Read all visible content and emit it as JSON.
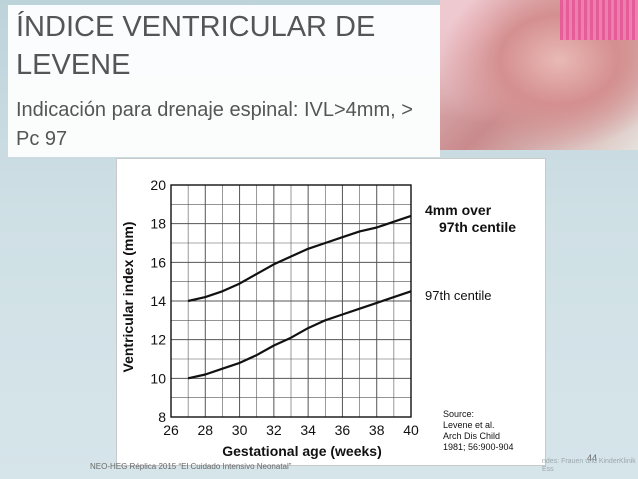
{
  "slide": {
    "title": "ÍNDICE VENTRICULAR DE LEVENE",
    "subtitle": "Indicación para drenaje espinal: IVL>4mm, > Pc 97",
    "footer": "NEO-HEG Réplica 2015 “El Cuidado Intensivo Neonatal”",
    "page_number": "44",
    "watermark": "ndes: Frauen und KinderKlinik Ess"
  },
  "chart_data": {
    "type": "line",
    "title": "",
    "xlabel": "Gestational age (weeks)",
    "ylabel": "Ventricular index (mm)",
    "xlim": [
      26,
      40
    ],
    "ylim": [
      8,
      20
    ],
    "x_ticks": [
      26,
      28,
      30,
      32,
      34,
      36,
      38,
      40
    ],
    "y_ticks": [
      8,
      10,
      12,
      14,
      16,
      18,
      20
    ],
    "grid": true,
    "series": [
      {
        "name": "4mm over 97th centile",
        "x": [
          27,
          28,
          29,
          30,
          31,
          32,
          33,
          34,
          35,
          36,
          37,
          38,
          39,
          40
        ],
        "y": [
          14.0,
          14.2,
          14.5,
          14.9,
          15.4,
          15.9,
          16.3,
          16.7,
          17.0,
          17.3,
          17.6,
          17.8,
          18.1,
          18.4
        ]
      },
      {
        "name": "97th centile",
        "x": [
          27,
          28,
          29,
          30,
          31,
          32,
          33,
          34,
          35,
          36,
          37,
          38,
          39,
          40
        ],
        "y": [
          10.0,
          10.2,
          10.5,
          10.8,
          11.2,
          11.7,
          12.1,
          12.6,
          13.0,
          13.3,
          13.6,
          13.9,
          14.2,
          14.5
        ]
      }
    ],
    "series_labels": {
      "upper_line1": "4mm over",
      "upper_line2": "97th centile",
      "lower": "97th centile"
    },
    "source": {
      "line1": "Source:",
      "line2": "Levene et al.",
      "line3": "Arch Dis Child",
      "line4": "1981; 56:900-904"
    }
  }
}
